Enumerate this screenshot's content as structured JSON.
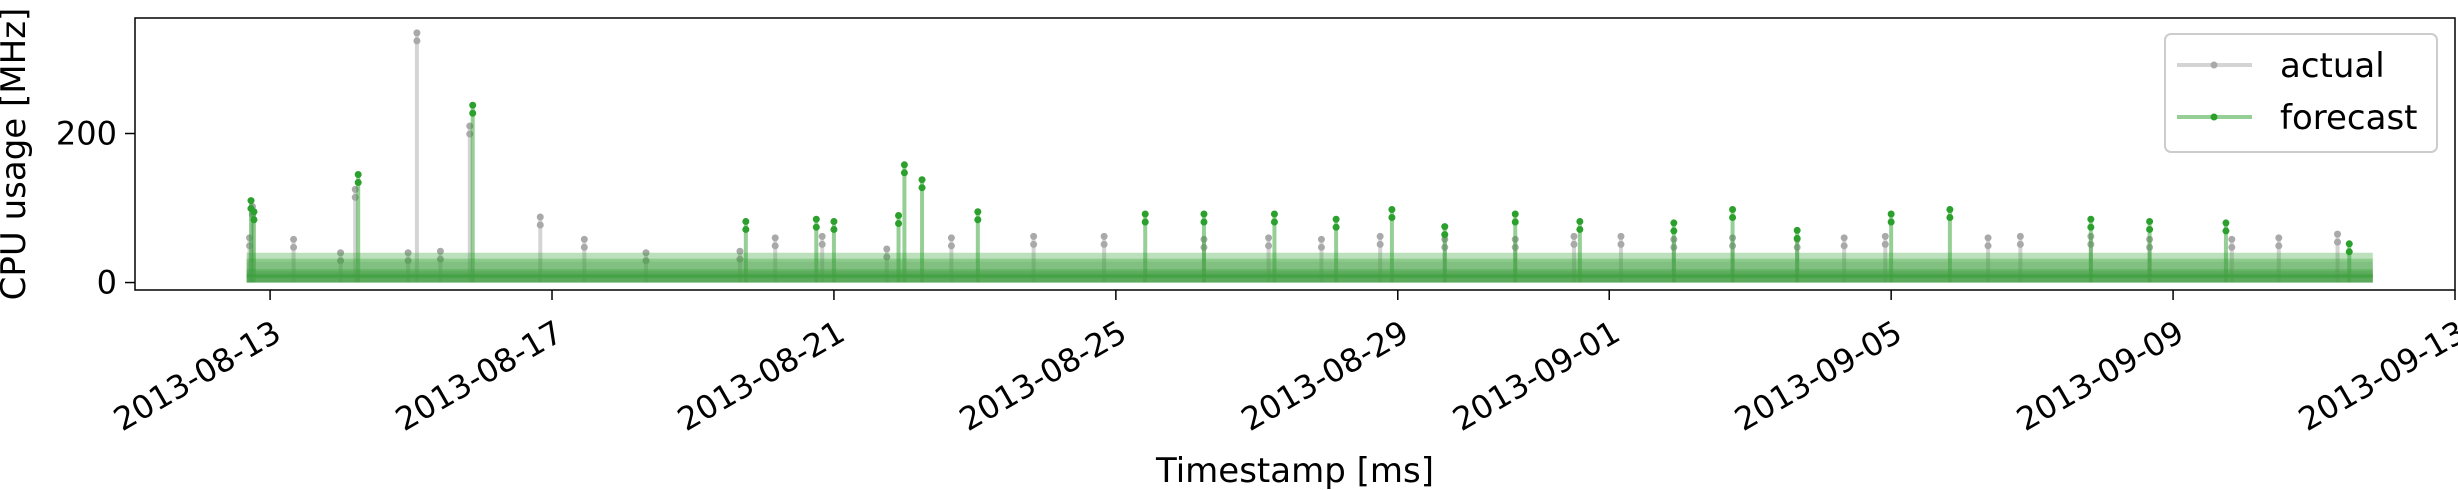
{
  "chart_data": {
    "type": "line",
    "title": "",
    "xlabel": "Timestamp [ms]",
    "ylabel": "CPU usage [MHz]",
    "xlim": [
      "2013-08-11T02:00",
      "2013-09-13T00:00"
    ],
    "ylim": [
      -10,
      355
    ],
    "x_ticks": [
      "2013-08-13",
      "2013-08-17",
      "2013-08-21",
      "2013-08-25",
      "2013-08-29",
      "2013-09-01",
      "2013-09-05",
      "2013-09-09",
      "2013-09-13"
    ],
    "y_ticks": [
      0,
      200
    ],
    "x_range": [
      "2013-08-12T16:00",
      "2013-09-11T20:00"
    ],
    "grid": false,
    "legend": "top-right",
    "series": [
      {
        "name": "actual",
        "color": "#a9a9a9",
        "band": [
          [
            0,
            15
          ],
          [
            0,
            15
          ],
          [
            0,
            28
          ]
        ],
        "spikes": [
          {
            "x": "2013-08-12T17:00",
            "y": 60
          },
          {
            "x": "2013-08-12T18:00",
            "y": 102
          },
          {
            "x": "2013-08-13T08:00",
            "y": 58
          },
          {
            "x": "2013-08-14T00:00",
            "y": 40
          },
          {
            "x": "2013-08-14T05:00",
            "y": 125
          },
          {
            "x": "2013-08-14T23:00",
            "y": 40
          },
          {
            "x": "2013-08-15T02:00",
            "y": 335
          },
          {
            "x": "2013-08-15T10:00",
            "y": 42
          },
          {
            "x": "2013-08-15T20:00",
            "y": 210
          },
          {
            "x": "2013-08-16T20:00",
            "y": 88
          },
          {
            "x": "2013-08-17T11:00",
            "y": 58
          },
          {
            "x": "2013-08-18T08:00",
            "y": 40
          },
          {
            "x": "2013-08-19T16:00",
            "y": 42
          },
          {
            "x": "2013-08-20T04:00",
            "y": 60
          },
          {
            "x": "2013-08-20T20:00",
            "y": 62
          },
          {
            "x": "2013-08-21T18:00",
            "y": 45
          },
          {
            "x": "2013-08-22T16:00",
            "y": 60
          },
          {
            "x": "2013-08-23T20:00",
            "y": 62
          },
          {
            "x": "2013-08-24T20:00",
            "y": 62
          },
          {
            "x": "2013-08-26T06:00",
            "y": 58
          },
          {
            "x": "2013-08-27T04:00",
            "y": 60
          },
          {
            "x": "2013-08-27T22:00",
            "y": 58
          },
          {
            "x": "2013-08-28T18:00",
            "y": 62
          },
          {
            "x": "2013-08-29T16:00",
            "y": 58
          },
          {
            "x": "2013-08-30T16:00",
            "y": 58
          },
          {
            "x": "2013-08-31T12:00",
            "y": 62
          },
          {
            "x": "2013-09-01T04:00",
            "y": 62
          },
          {
            "x": "2013-09-01T22:00",
            "y": 58
          },
          {
            "x": "2013-09-02T18:00",
            "y": 60
          },
          {
            "x": "2013-09-03T16:00",
            "y": 58
          },
          {
            "x": "2013-09-04T08:00",
            "y": 60
          },
          {
            "x": "2013-09-04T22:00",
            "y": 62
          },
          {
            "x": "2013-09-06T09:00",
            "y": 60
          },
          {
            "x": "2013-09-06T20:00",
            "y": 62
          },
          {
            "x": "2013-09-07T20:00",
            "y": 62
          },
          {
            "x": "2013-09-08T16:00",
            "y": 58
          },
          {
            "x": "2013-09-09T20:00",
            "y": 58
          },
          {
            "x": "2013-09-10T12:00",
            "y": 60
          },
          {
            "x": "2013-09-11T08:00",
            "y": 65
          }
        ]
      },
      {
        "name": "forecast",
        "color": "#2ca02c",
        "band": [
          [
            0,
            18
          ],
          [
            0,
            32
          ],
          [
            0,
            40
          ]
        ],
        "spikes": [
          {
            "x": "2013-08-12T17:30",
            "y": 110
          },
          {
            "x": "2013-08-12T18:30",
            "y": 95
          },
          {
            "x": "2013-08-14T06:00",
            "y": 145
          },
          {
            "x": "2013-08-15T21:00",
            "y": 238
          },
          {
            "x": "2013-08-19T18:00",
            "y": 82
          },
          {
            "x": "2013-08-20T18:00",
            "y": 85
          },
          {
            "x": "2013-08-21T00:00",
            "y": 82
          },
          {
            "x": "2013-08-21T22:00",
            "y": 90
          },
          {
            "x": "2013-08-22T00:00",
            "y": 158
          },
          {
            "x": "2013-08-22T06:00",
            "y": 138
          },
          {
            "x": "2013-08-23T01:00",
            "y": 95
          },
          {
            "x": "2013-08-25T10:00",
            "y": 92
          },
          {
            "x": "2013-08-26T06:00",
            "y": 92
          },
          {
            "x": "2013-08-27T06:00",
            "y": 92
          },
          {
            "x": "2013-08-28T03:00",
            "y": 85
          },
          {
            "x": "2013-08-28T22:00",
            "y": 98
          },
          {
            "x": "2013-08-29T16:00",
            "y": 75
          },
          {
            "x": "2013-08-30T16:00",
            "y": 92
          },
          {
            "x": "2013-08-31T14:00",
            "y": 82
          },
          {
            "x": "2013-09-01T22:00",
            "y": 80
          },
          {
            "x": "2013-09-02T18:00",
            "y": 98
          },
          {
            "x": "2013-09-03T16:00",
            "y": 70
          },
          {
            "x": "2013-09-05T00:00",
            "y": 92
          },
          {
            "x": "2013-09-05T20:00",
            "y": 98
          },
          {
            "x": "2013-09-07T20:00",
            "y": 85
          },
          {
            "x": "2013-09-08T16:00",
            "y": 82
          },
          {
            "x": "2013-09-09T18:00",
            "y": 80
          },
          {
            "x": "2013-09-11T12:00",
            "y": 52
          }
        ]
      }
    ]
  }
}
